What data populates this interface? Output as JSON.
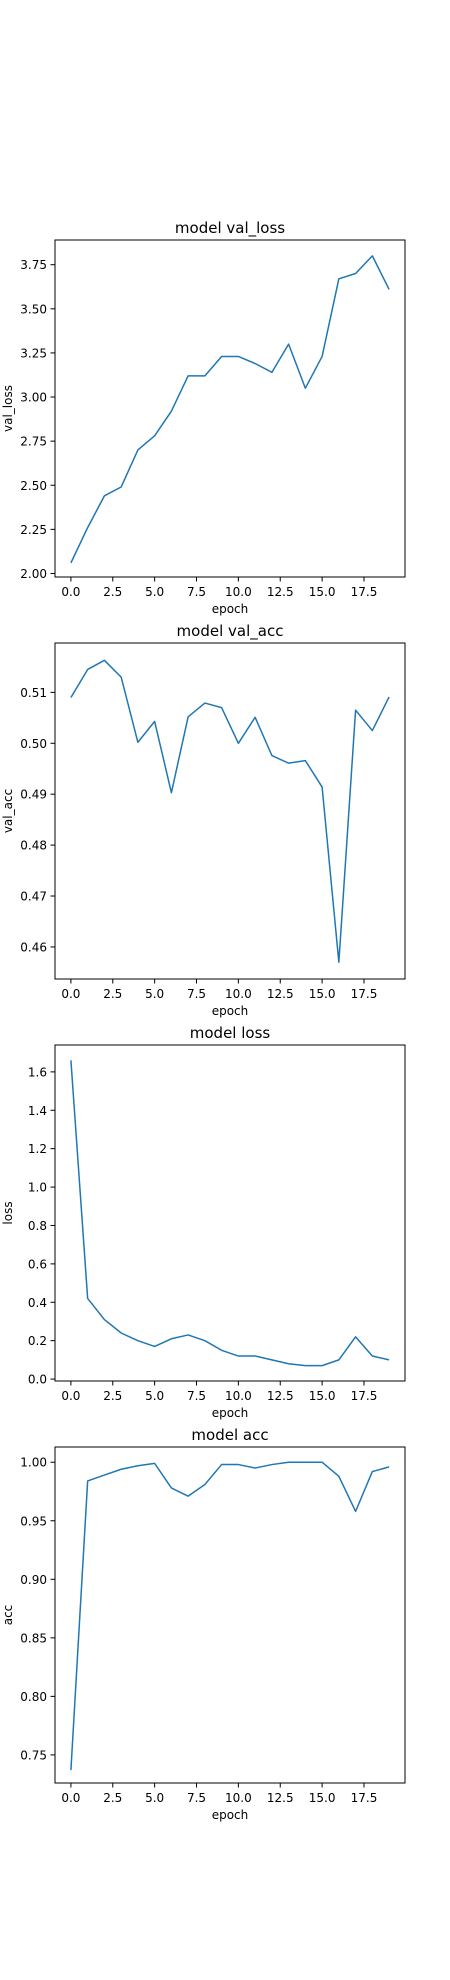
{
  "colors": {
    "line": "#1f77b4",
    "axes": "#000000",
    "background": "#ffffff"
  },
  "chart_data": [
    {
      "type": "line",
      "title": "model val_loss",
      "xlabel": "epoch",
      "ylabel": "val_loss",
      "xlim": [
        -0.95,
        19.95
      ],
      "ylim": [
        1.98,
        3.89
      ],
      "xticks": [
        0,
        2.5,
        5,
        7.5,
        10,
        12.5,
        15,
        17.5
      ],
      "xtick_labels": [
        "0.0",
        "2.5",
        "5.0",
        "7.5",
        "10.0",
        "12.5",
        "15.0",
        "17.5"
      ],
      "yticks": [
        2.0,
        2.25,
        2.5,
        2.75,
        3.0,
        3.25,
        3.5,
        3.75
      ],
      "ytick_labels": [
        "2.00",
        "2.25",
        "2.50",
        "2.75",
        "3.00",
        "3.25",
        "3.50",
        "3.75"
      ],
      "grid": false,
      "series": [
        {
          "x": [
            0,
            1,
            2,
            3,
            4,
            5,
            6,
            7,
            8,
            9,
            10,
            11,
            12,
            13,
            14,
            15,
            16,
            17,
            18,
            19
          ],
          "values": [
            2.06,
            2.26,
            2.44,
            2.49,
            2.7,
            2.78,
            2.92,
            3.12,
            3.12,
            3.23,
            3.23,
            3.19,
            3.14,
            3.3,
            3.05,
            3.23,
            3.67,
            3.7,
            3.8,
            3.61
          ]
        }
      ]
    },
    {
      "type": "line",
      "title": "model val_acc",
      "xlabel": "epoch",
      "ylabel": "val_acc",
      "xlim": [
        -0.95,
        19.95
      ],
      "ylim": [
        0.4537,
        0.5197
      ],
      "xticks": [
        0,
        2.5,
        5,
        7.5,
        10,
        12.5,
        15,
        17.5
      ],
      "xtick_labels": [
        "0.0",
        "2.5",
        "5.0",
        "7.5",
        "10.0",
        "12.5",
        "15.0",
        "17.5"
      ],
      "yticks": [
        0.46,
        0.47,
        0.48,
        0.49,
        0.5,
        0.51
      ],
      "ytick_labels": [
        "0.46",
        "0.47",
        "0.48",
        "0.49",
        "0.50",
        "0.51"
      ],
      "grid": false,
      "series": [
        {
          "x": [
            0,
            1,
            2,
            3,
            4,
            5,
            6,
            7,
            8,
            9,
            10,
            11,
            12,
            13,
            14,
            15,
            16,
            17,
            18,
            19
          ],
          "values": [
            0.509,
            0.5145,
            0.5163,
            0.513,
            0.5002,
            0.5043,
            0.4903,
            0.5052,
            0.5079,
            0.507,
            0.5,
            0.5051,
            0.4976,
            0.4961,
            0.4966,
            0.4914,
            0.457,
            0.5065,
            0.5025,
            0.5091
          ]
        }
      ]
    },
    {
      "type": "line",
      "title": "model loss",
      "xlabel": "epoch",
      "ylabel": "loss",
      "xlim": [
        -0.95,
        19.95
      ],
      "ylim": [
        -0.01,
        1.74
      ],
      "xticks": [
        0,
        2.5,
        5,
        7.5,
        10,
        12.5,
        15,
        17.5
      ],
      "xtick_labels": [
        "0.0",
        "2.5",
        "5.0",
        "7.5",
        "10.0",
        "12.5",
        "15.0",
        "17.5"
      ],
      "yticks": [
        0.0,
        0.2,
        0.4,
        0.6,
        0.8,
        1.0,
        1.2,
        1.4,
        1.6
      ],
      "ytick_labels": [
        "0.0",
        "0.2",
        "0.4",
        "0.6",
        "0.8",
        "1.0",
        "1.2",
        "1.4",
        "1.6"
      ],
      "grid": false,
      "series": [
        {
          "x": [
            0,
            1,
            2,
            3,
            4,
            5,
            6,
            7,
            8,
            9,
            10,
            11,
            12,
            13,
            14,
            15,
            16,
            17,
            18,
            19
          ],
          "values": [
            1.66,
            0.42,
            0.31,
            0.24,
            0.2,
            0.17,
            0.21,
            0.23,
            0.2,
            0.15,
            0.12,
            0.12,
            0.1,
            0.08,
            0.07,
            0.07,
            0.1,
            0.22,
            0.12,
            0.1
          ]
        }
      ]
    },
    {
      "type": "line",
      "title": "model acc",
      "xlabel": "epoch",
      "ylabel": "acc",
      "xlim": [
        -0.95,
        19.95
      ],
      "ylim": [
        0.726,
        1.013
      ],
      "xticks": [
        0,
        2.5,
        5,
        7.5,
        10,
        12.5,
        15,
        17.5
      ],
      "xtick_labels": [
        "0.0",
        "2.5",
        "5.0",
        "7.5",
        "10.0",
        "12.5",
        "15.0",
        "17.5"
      ],
      "yticks": [
        0.75,
        0.8,
        0.85,
        0.9,
        0.95,
        1.0
      ],
      "ytick_labels": [
        "0.75",
        "0.80",
        "0.85",
        "0.90",
        "0.95",
        "1.00"
      ],
      "grid": false,
      "series": [
        {
          "x": [
            0,
            1,
            2,
            3,
            4,
            5,
            6,
            7,
            8,
            9,
            10,
            11,
            12,
            13,
            14,
            15,
            16,
            17,
            18,
            19
          ],
          "values": [
            0.737,
            0.984,
            0.989,
            0.994,
            0.997,
            0.999,
            0.978,
            0.971,
            0.981,
            0.998,
            0.998,
            0.995,
            0.998,
            1.0,
            1.0,
            1.0,
            0.988,
            0.958,
            0.992,
            0.996
          ]
        }
      ]
    }
  ]
}
